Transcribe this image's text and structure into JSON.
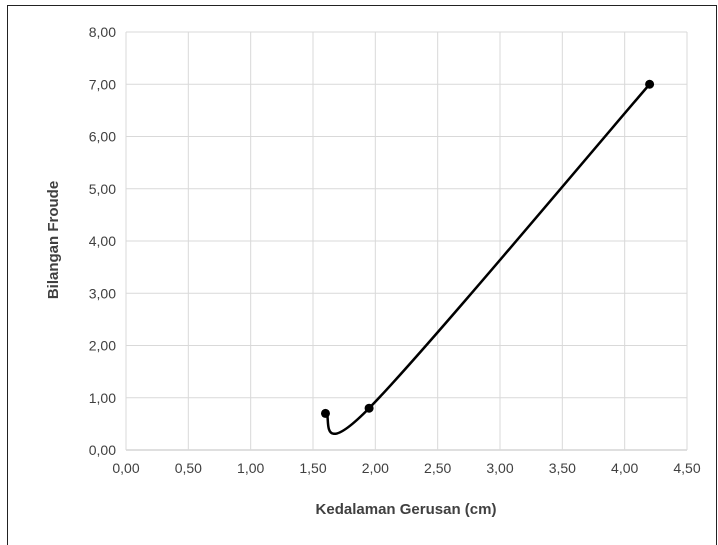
{
  "chart_data": {
    "type": "scatter",
    "title": "",
    "xlabel": "Kedalaman Gerusan (cm)",
    "ylabel": "Bilangan Froude",
    "xlim": [
      0,
      4.5
    ],
    "ylim": [
      0,
      8
    ],
    "x_ticks": [
      "0,00",
      "0,50",
      "1,00",
      "1,50",
      "2,00",
      "2,50",
      "3,00",
      "3,50",
      "4,00",
      "4,50"
    ],
    "y_ticks": [
      "0,00",
      "1,00",
      "2,00",
      "3,00",
      "4,00",
      "5,00",
      "6,00",
      "7,00",
      "8,00"
    ],
    "grid": true,
    "legend": "none",
    "line_style": "smoothed",
    "series": [
      {
        "x": [
          1.6,
          1.95,
          4.2
        ],
        "y": [
          0.7,
          0.8,
          7.0
        ],
        "color": "#000000"
      }
    ]
  }
}
